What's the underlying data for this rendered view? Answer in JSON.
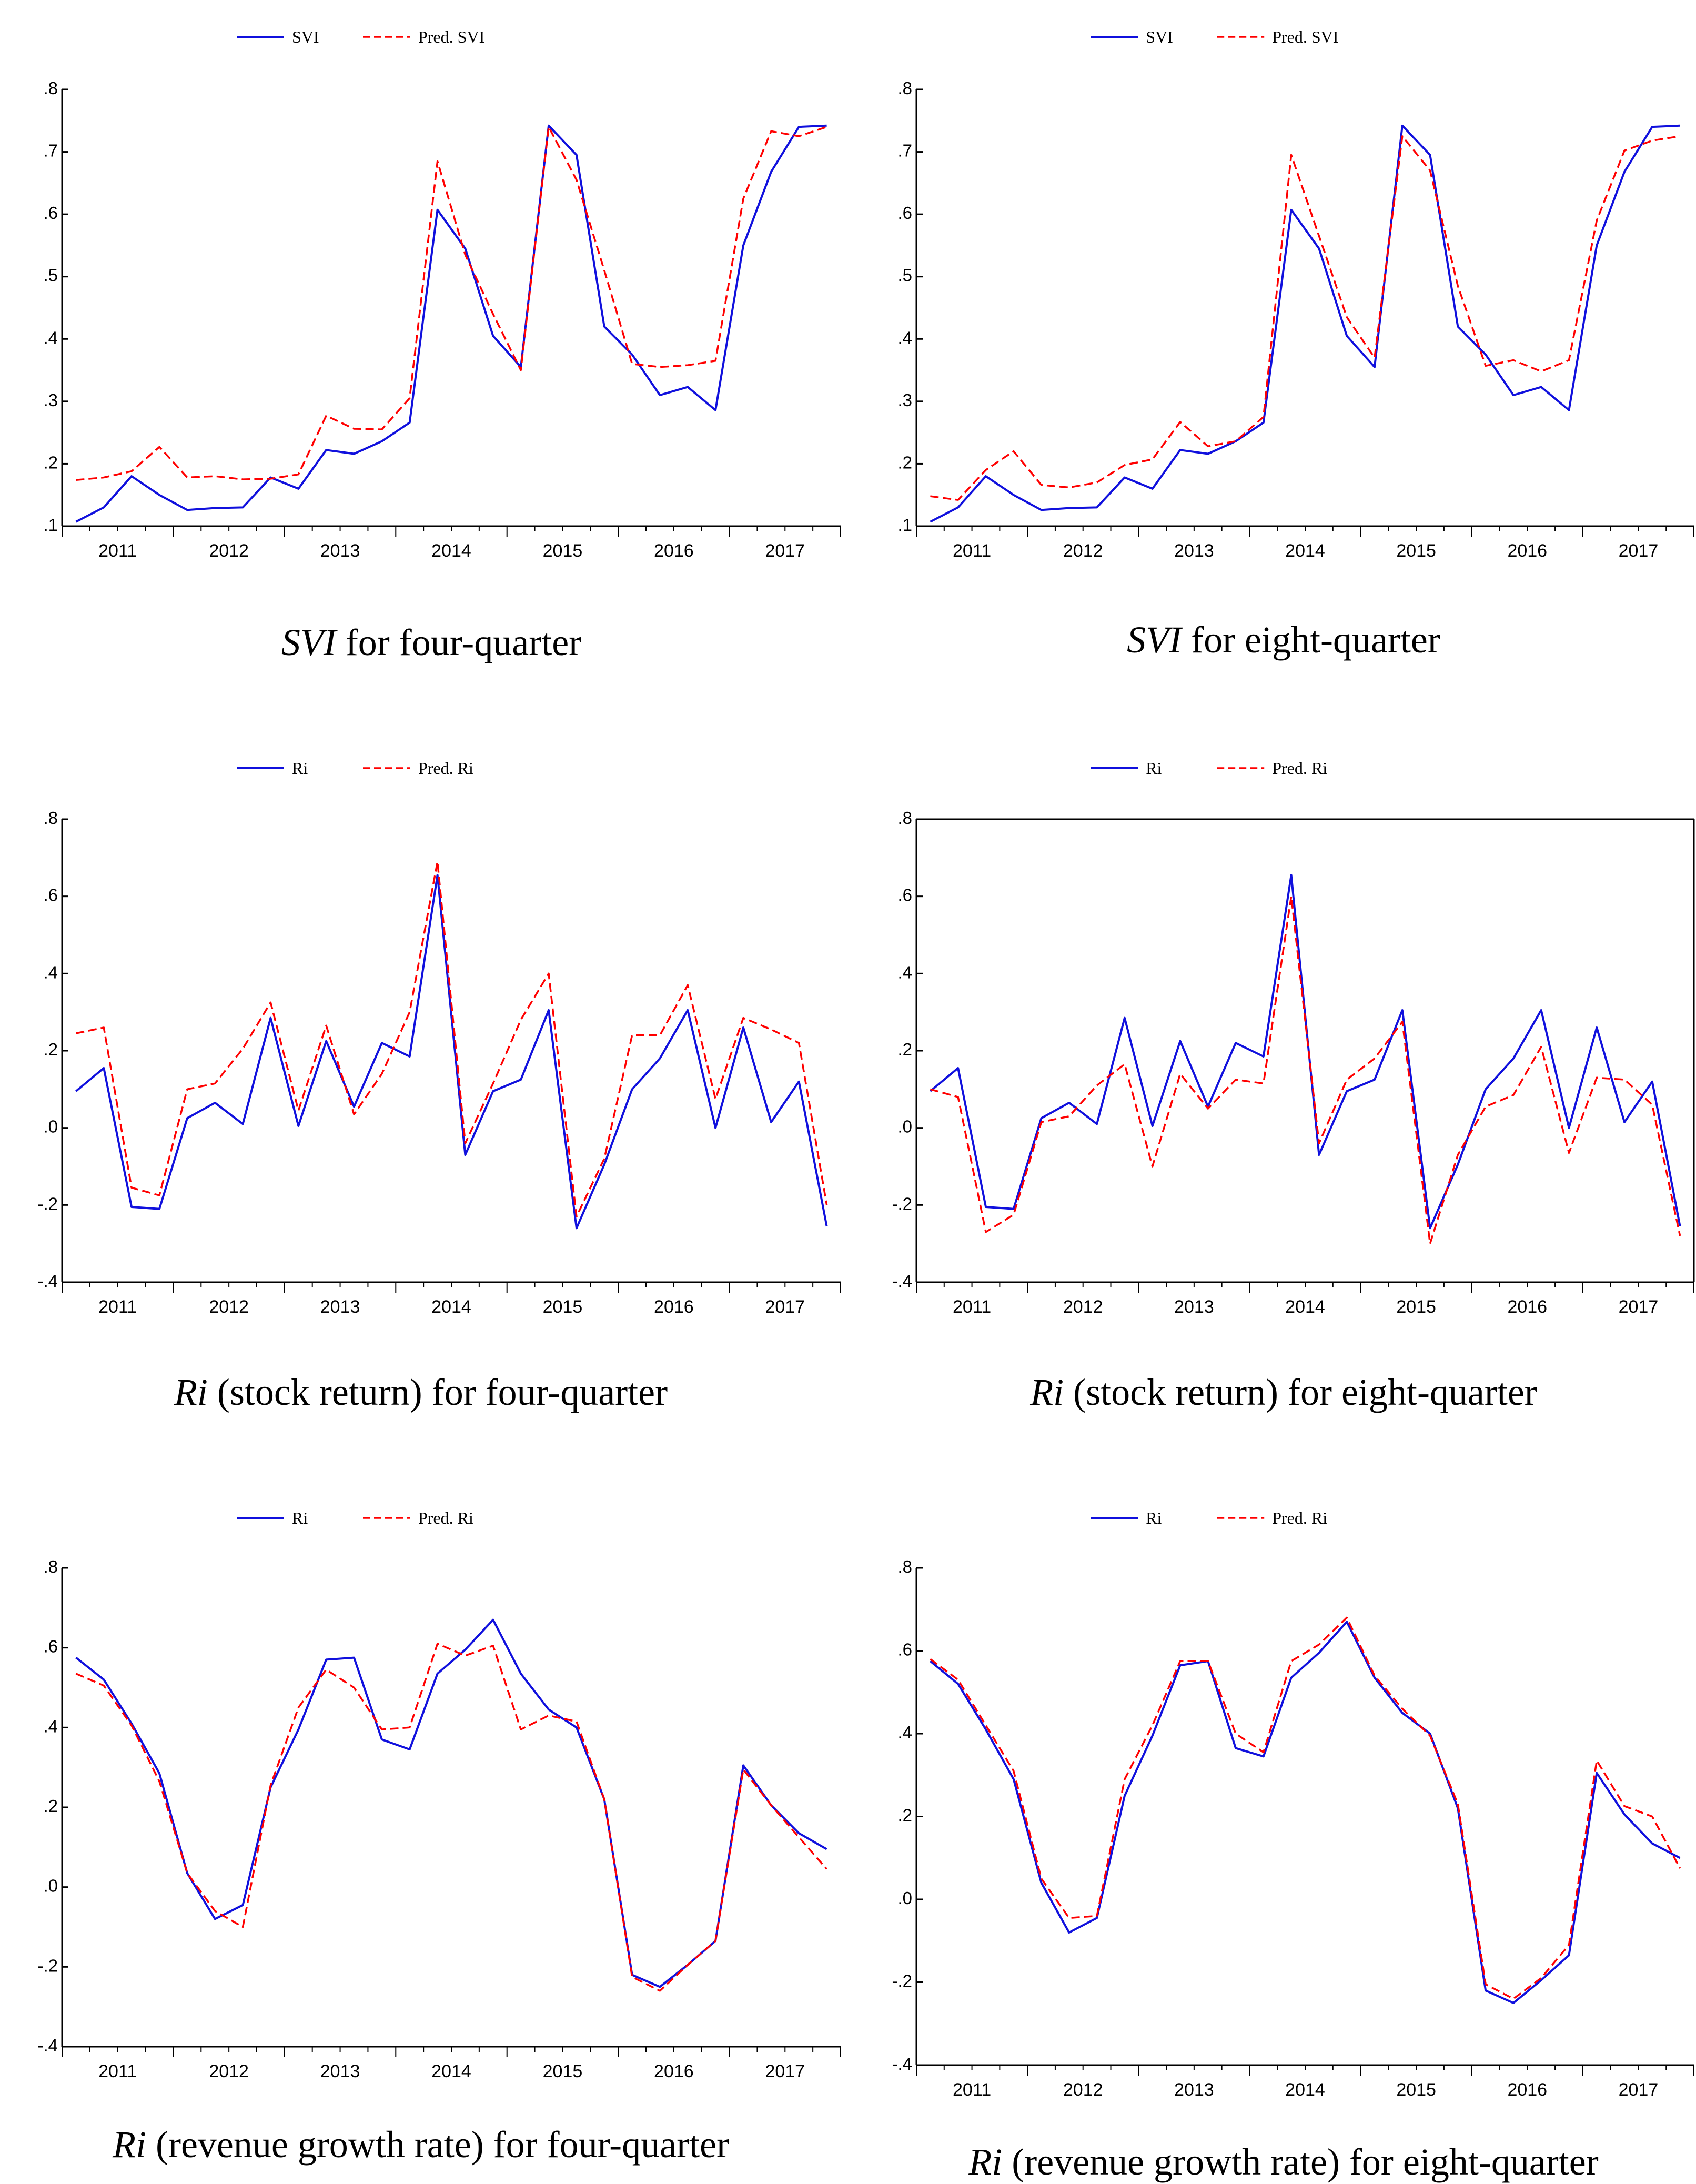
{
  "colors": {
    "actual": "#1010dd",
    "predicted": "#ff0000",
    "axis": "#000000"
  },
  "chart_data": [
    {
      "type": "line",
      "id": "svi-four",
      "caption_var": "SVI",
      "caption_rest": " for four-quarter",
      "legend": [
        "SVI",
        "Pred. SVI"
      ],
      "ylim": [
        0.1,
        0.8
      ],
      "yticks": [
        ".1",
        ".2",
        ".3",
        ".4",
        ".5",
        ".6",
        ".7",
        ".8"
      ],
      "ytick_values": [
        0.1,
        0.2,
        0.3,
        0.4,
        0.5,
        0.6,
        0.7,
        0.8
      ],
      "years": [
        "2011",
        "2012",
        "2013",
        "2014",
        "2015",
        "2016",
        "2017"
      ],
      "series": [
        {
          "name": "SVI",
          "values": [
            0.107,
            0.13,
            0.18,
            0.15,
            0.126,
            0.129,
            0.13,
            0.178,
            0.16,
            0.222,
            0.216,
            0.236,
            0.266,
            0.607,
            0.545,
            0.405,
            0.355,
            0.742,
            0.695,
            0.42,
            0.375,
            0.31,
            0.323,
            0.286,
            0.55,
            0.668,
            0.74,
            0.742
          ]
        },
        {
          "name": "Pred. SVI",
          "values": [
            0.174,
            0.178,
            0.188,
            0.227,
            0.178,
            0.18,
            0.175,
            0.176,
            0.183,
            0.277,
            0.256,
            0.255,
            0.305,
            0.685,
            0.535,
            0.44,
            0.35,
            0.74,
            0.655,
            0.51,
            0.36,
            0.355,
            0.358,
            0.365,
            0.625,
            0.733,
            0.725,
            0.74
          ]
        }
      ]
    },
    {
      "type": "line",
      "id": "svi-eight",
      "caption_var": "SVI",
      "caption_rest": " for eight-quarter",
      "legend": [
        "SVI",
        "Pred. SVI"
      ],
      "ylim": [
        0.1,
        0.8
      ],
      "yticks": [
        ".1",
        ".2",
        ".3",
        ".4",
        ".5",
        ".6",
        ".7",
        ".8"
      ],
      "ytick_values": [
        0.1,
        0.2,
        0.3,
        0.4,
        0.5,
        0.6,
        0.7,
        0.8
      ],
      "years": [
        "2011",
        "2012",
        "2013",
        "2014",
        "2015",
        "2016",
        "2017"
      ],
      "series": [
        {
          "name": "SVI",
          "values": [
            0.107,
            0.13,
            0.18,
            0.15,
            0.126,
            0.129,
            0.13,
            0.178,
            0.16,
            0.222,
            0.216,
            0.236,
            0.266,
            0.607,
            0.545,
            0.405,
            0.355,
            0.742,
            0.695,
            0.42,
            0.375,
            0.31,
            0.323,
            0.286,
            0.55,
            0.668,
            0.74,
            0.742
          ]
        },
        {
          "name": "Pred. SVI",
          "values": [
            0.148,
            0.142,
            0.19,
            0.22,
            0.166,
            0.162,
            0.17,
            0.198,
            0.207,
            0.267,
            0.228,
            0.236,
            0.275,
            0.695,
            0.565,
            0.435,
            0.37,
            0.725,
            0.67,
            0.485,
            0.357,
            0.366,
            0.348,
            0.366,
            0.59,
            0.702,
            0.718,
            0.725
          ]
        }
      ]
    },
    {
      "type": "line",
      "id": "ri-stock-four",
      "caption_var": "Ri",
      "caption_rest": " (stock return) for four-quarter",
      "legend": [
        "Ri",
        "Pred. Ri"
      ],
      "ylim": [
        -0.4,
        0.8
      ],
      "yticks": [
        "-.4",
        "-.2",
        ".0",
        ".2",
        ".4",
        ".6",
        ".8"
      ],
      "ytick_values": [
        -0.4,
        -0.2,
        0.0,
        0.2,
        0.4,
        0.6,
        0.8
      ],
      "years": [
        "2011",
        "2012",
        "2013",
        "2014",
        "2015",
        "2016",
        "2017"
      ],
      "series": [
        {
          "name": "Ri",
          "values": [
            0.095,
            0.155,
            -0.205,
            -0.21,
            0.025,
            0.065,
            0.01,
            0.285,
            0.005,
            0.225,
            0.055,
            0.22,
            0.185,
            0.655,
            -0.07,
            0.095,
            0.125,
            0.305,
            -0.26,
            -0.095,
            0.1,
            0.18,
            0.305,
            0.0,
            0.26,
            0.015,
            0.12,
            -0.255
          ]
        },
        {
          "name": "Pred. Ri",
          "values": [
            0.245,
            0.26,
            -0.155,
            -0.175,
            0.1,
            0.115,
            0.205,
            0.325,
            0.045,
            0.265,
            0.035,
            0.14,
            0.3,
            0.69,
            -0.04,
            0.115,
            0.28,
            0.4,
            -0.23,
            -0.08,
            0.24,
            0.24,
            0.37,
            0.075,
            0.285,
            0.255,
            0.22,
            -0.2
          ]
        }
      ]
    },
    {
      "type": "line",
      "id": "ri-stock-eight",
      "caption_var": "Ri",
      "caption_rest": " (stock return) for eight-quarter",
      "legend": [
        "Ri",
        "Pred. Ri"
      ],
      "ylim": [
        -0.4,
        0.8
      ],
      "yticks": [
        "-.4",
        "-.2",
        ".0",
        ".2",
        ".4",
        ".6",
        ".8"
      ],
      "ytick_values": [
        -0.4,
        -0.2,
        0.0,
        0.2,
        0.4,
        0.6,
        0.8
      ],
      "years": [
        "2011",
        "2012",
        "2013",
        "2014",
        "2015",
        "2016",
        "2017"
      ],
      "series": [
        {
          "name": "Ri",
          "values": [
            0.095,
            0.155,
            -0.205,
            -0.21,
            0.025,
            0.065,
            0.01,
            0.285,
            0.005,
            0.225,
            0.055,
            0.22,
            0.185,
            0.655,
            -0.07,
            0.095,
            0.125,
            0.305,
            -0.26,
            -0.095,
            0.1,
            0.18,
            0.305,
            0.0,
            0.26,
            0.015,
            0.12,
            -0.255
          ]
        },
        {
          "name": "Pred. Ri",
          "values": [
            0.1,
            0.08,
            -0.27,
            -0.225,
            0.015,
            0.03,
            0.11,
            0.165,
            -0.1,
            0.14,
            0.05,
            0.125,
            0.115,
            0.6,
            -0.04,
            0.125,
            0.18,
            0.275,
            -0.3,
            -0.07,
            0.055,
            0.085,
            0.21,
            -0.065,
            0.13,
            0.125,
            0.06,
            -0.28
          ]
        }
      ]
    },
    {
      "type": "line",
      "id": "ri-rev-four",
      "caption_var": "Ri",
      "caption_rest": " (revenue growth rate) for four-quarter",
      "legend": [
        "Ri",
        "Pred. Ri"
      ],
      "ylim": [
        -0.4,
        0.8
      ],
      "yticks": [
        "-.4",
        "-.2",
        ".0",
        ".2",
        ".4",
        ".6",
        ".8"
      ],
      "ytick_values": [
        -0.4,
        -0.2,
        0.0,
        0.2,
        0.4,
        0.6,
        0.8
      ],
      "years": [
        "2011",
        "2012",
        "2013",
        "2014",
        "2015",
        "2016",
        "2017"
      ],
      "series": [
        {
          "name": "Ri",
          "values": [
            0.575,
            0.52,
            0.41,
            0.285,
            0.035,
            -0.08,
            -0.045,
            0.25,
            0.395,
            0.57,
            0.575,
            0.37,
            0.345,
            0.535,
            0.595,
            0.67,
            0.535,
            0.445,
            0.4,
            0.22,
            -0.22,
            -0.25,
            -0.195,
            -0.135,
            0.305,
            0.205,
            0.135,
            0.095
          ]
        },
        {
          "name": "Pred. Ri",
          "values": [
            0.535,
            0.505,
            0.405,
            0.265,
            0.035,
            -0.06,
            -0.1,
            0.255,
            0.45,
            0.545,
            0.5,
            0.395,
            0.4,
            0.61,
            0.58,
            0.605,
            0.395,
            0.43,
            0.415,
            0.22,
            -0.225,
            -0.26,
            -0.195,
            -0.135,
            0.295,
            0.205,
            0.125,
            0.045
          ]
        }
      ]
    },
    {
      "type": "line",
      "id": "ri-rev-eight",
      "caption_var": "Ri",
      "caption_rest": " (revenue growth rate) for eight-quarter",
      "legend": [
        "Ri",
        "Pred. Ri"
      ],
      "ylim": [
        -0.4,
        0.8
      ],
      "yticks": [
        "-.4",
        "-.2",
        ".0",
        ".2",
        ".4",
        ".6",
        ".8"
      ],
      "ytick_values": [
        -0.4,
        -0.2,
        0.0,
        0.2,
        0.4,
        0.6,
        0.8
      ],
      "years": [
        "2011",
        "2012",
        "2013",
        "2014",
        "2015",
        "2016",
        "2017"
      ],
      "series": [
        {
          "name": "Ri",
          "values": [
            0.575,
            0.52,
            0.41,
            0.29,
            0.04,
            -0.08,
            -0.045,
            0.25,
            0.395,
            0.565,
            0.575,
            0.365,
            0.345,
            0.535,
            0.595,
            0.67,
            0.535,
            0.45,
            0.4,
            0.22,
            -0.22,
            -0.25,
            -0.195,
            -0.135,
            0.305,
            0.205,
            0.135,
            0.1
          ]
        },
        {
          "name": "Pred. Ri",
          "values": [
            0.58,
            0.53,
            0.42,
            0.31,
            0.05,
            -0.045,
            -0.04,
            0.29,
            0.42,
            0.575,
            0.575,
            0.4,
            0.355,
            0.575,
            0.615,
            0.68,
            0.54,
            0.46,
            0.395,
            0.23,
            -0.205,
            -0.24,
            -0.19,
            -0.11,
            0.335,
            0.225,
            0.2,
            0.075
          ]
        }
      ]
    }
  ]
}
